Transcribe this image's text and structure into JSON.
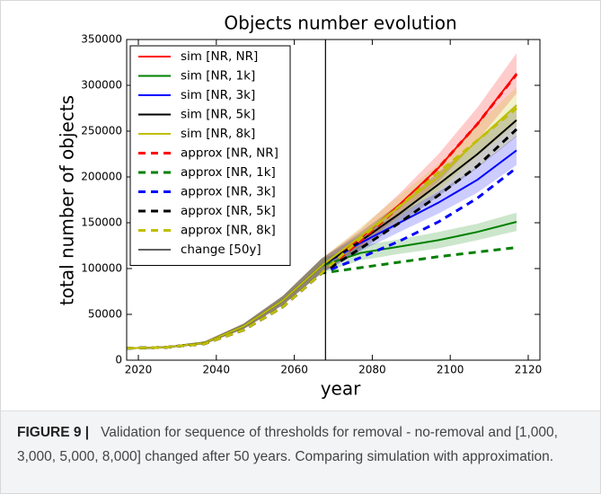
{
  "chart_data": {
    "type": "line",
    "title": "Objects number evolution",
    "x_label": "year",
    "y_label": "total number of objects",
    "x": [
      2017,
      2027,
      2037,
      2047,
      2057,
      2067,
      2077,
      2087,
      2097,
      2107,
      2117
    ],
    "xlim": [
      2017,
      2123
    ],
    "xticks": [
      2020,
      2040,
      2060,
      2080,
      2100,
      2120
    ],
    "ylim": [
      0,
      350000
    ],
    "yticks": [
      0,
      50000,
      100000,
      150000,
      200000,
      250000,
      300000,
      350000
    ],
    "legend": "upper left",
    "series": [
      {
        "name": "sim [NR, NR]",
        "color": "#ff0000",
        "style": "solid",
        "values": [
          13000,
          14000,
          19000,
          37000,
          65000,
          103000,
          133000,
          170000,
          210000,
          258000,
          313000
        ],
        "band": [
          1000,
          1000,
          1500,
          3000,
          5000,
          8000,
          10000,
          12000,
          15000,
          18000,
          22000
        ]
      },
      {
        "name": "sim [NR, 1k]",
        "color": "#008000",
        "style": "solid",
        "values": [
          13000,
          14000,
          19000,
          37000,
          65000,
          103000,
          117000,
          124000,
          131000,
          140000,
          151000
        ],
        "band": [
          1000,
          1000,
          1500,
          3000,
          5000,
          8000,
          8000,
          8000,
          9000,
          9000,
          10000
        ]
      },
      {
        "name": "sim [NR, 3k]",
        "color": "#0000ff",
        "style": "solid",
        "values": [
          13000,
          14000,
          19000,
          37000,
          65000,
          103000,
          128000,
          150000,
          172000,
          197000,
          229000
        ],
        "band": [
          1000,
          1000,
          1500,
          3000,
          5000,
          8000,
          9000,
          10000,
          12000,
          14000,
          16000
        ]
      },
      {
        "name": "sim [NR, 5k]",
        "color": "#000000",
        "style": "solid",
        "values": [
          13000,
          14000,
          19000,
          37000,
          65000,
          103000,
          130000,
          160000,
          192000,
          225000,
          262000
        ],
        "band": [
          1000,
          1000,
          1500,
          3000,
          5000,
          8000,
          10000,
          11000,
          13000,
          15000,
          18000
        ]
      },
      {
        "name": "sim [NR, 8k]",
        "color": "#bfbf00",
        "style": "solid",
        "values": [
          13000,
          14000,
          19000,
          37000,
          65000,
          103000,
          135000,
          168000,
          200000,
          240000,
          278000
        ],
        "band": [
          1000,
          1000,
          1500,
          3000,
          5000,
          8000,
          10000,
          12000,
          14000,
          17000,
          20000
        ]
      },
      {
        "name": "approx [NR, NR]",
        "color": "#ff0000",
        "style": "dashed",
        "values": [
          13000,
          14000,
          18000,
          33000,
          58000,
          95000,
          130000,
          168000,
          210000,
          258000,
          312000
        ]
      },
      {
        "name": "approx [NR, 1k]",
        "color": "#008000",
        "style": "dashed",
        "values": [
          13000,
          14000,
          18000,
          33000,
          58000,
          95000,
          101000,
          107000,
          113000,
          118000,
          123000
        ]
      },
      {
        "name": "approx [NR, 3k]",
        "color": "#0000ff",
        "style": "dashed",
        "values": [
          13000,
          14000,
          18000,
          33000,
          58000,
          95000,
          112000,
          130000,
          151000,
          177000,
          210000
        ]
      },
      {
        "name": "approx [NR, 5k]",
        "color": "#000000",
        "style": "dashed",
        "values": [
          13000,
          14000,
          18000,
          33000,
          58000,
          95000,
          122000,
          150000,
          180000,
          212000,
          252000
        ]
      },
      {
        "name": "approx [NR, 8k]",
        "color": "#bfbf00",
        "style": "dashed",
        "values": [
          13000,
          14000,
          18000,
          33000,
          58000,
          95000,
          133000,
          168000,
          205000,
          240000,
          275000
        ]
      }
    ],
    "vline": {
      "name": "change [50y]",
      "x": 2068,
      "color": "#000000"
    }
  },
  "caption": {
    "label": "FIGURE 9 |",
    "text": "Validation for sequence of thresholds for removal - no-removal and [1,000, 3,000, 5,000, 8,000] changed after 50 years. Comparing simulation with approximation."
  }
}
